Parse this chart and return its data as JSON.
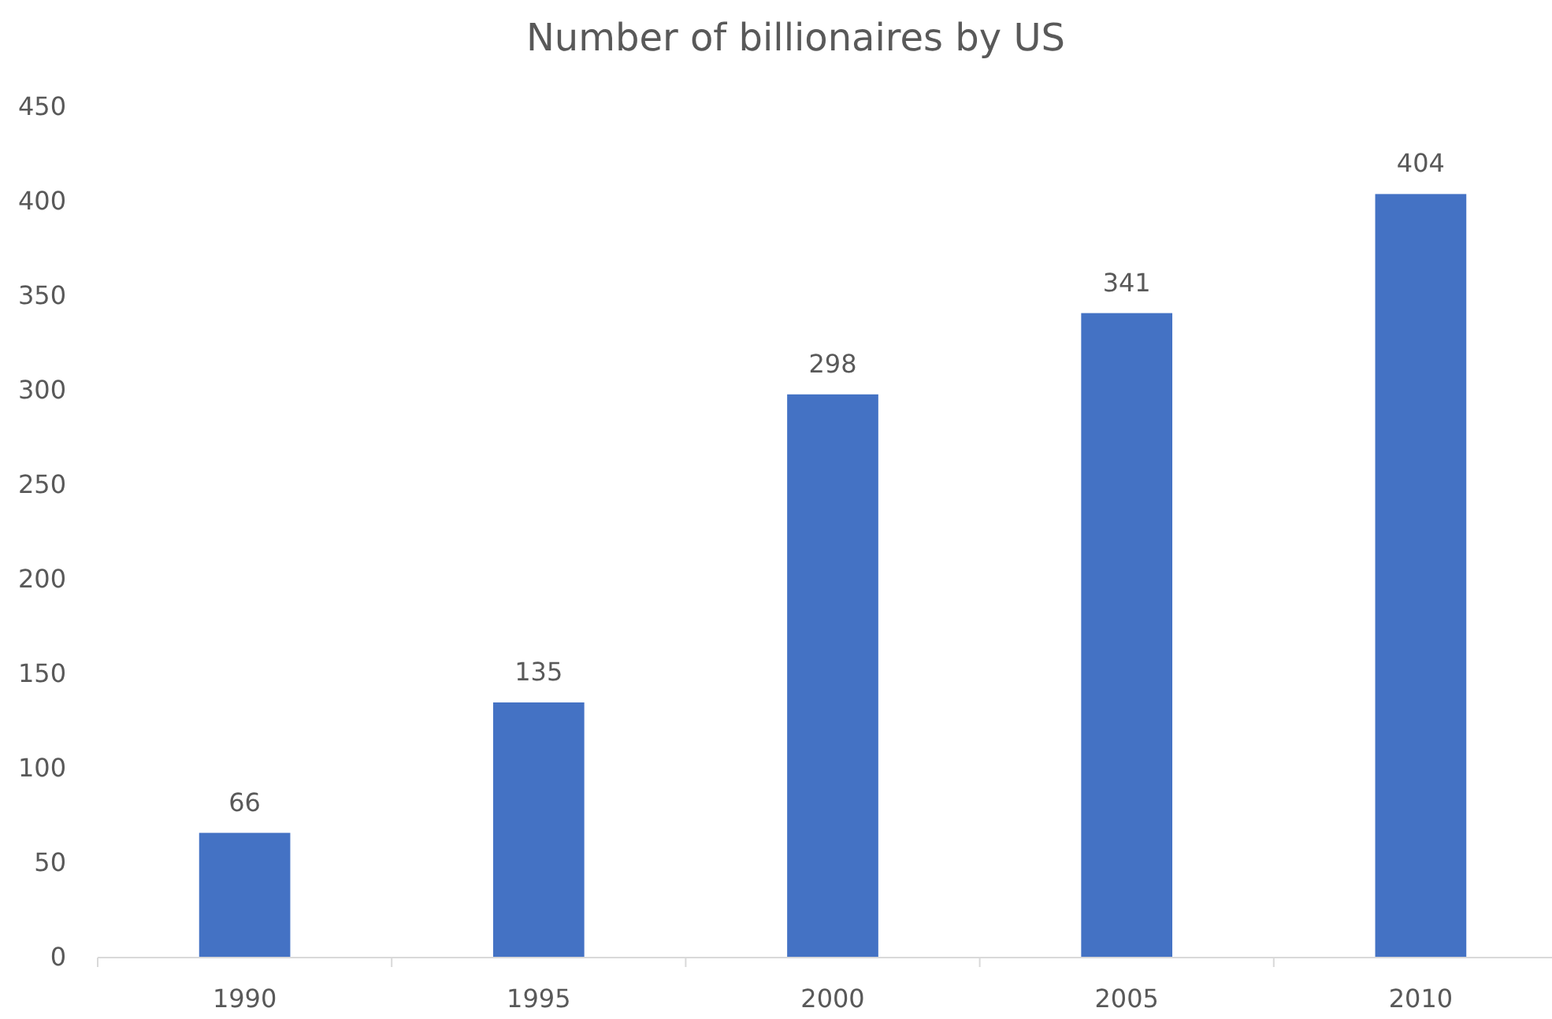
{
  "chart_data": {
    "type": "bar",
    "title": "Number of billionaires by US",
    "categories": [
      "1990",
      "1995",
      "2000",
      "2005",
      "2010"
    ],
    "values": [
      66,
      135,
      298,
      341,
      404
    ],
    "color": "#4472c4",
    "ylim": [
      0,
      450
    ],
    "yticks": [
      0,
      50,
      100,
      150,
      200,
      250,
      300,
      350,
      400,
      450
    ],
    "grid": false,
    "data_labels": true
  }
}
